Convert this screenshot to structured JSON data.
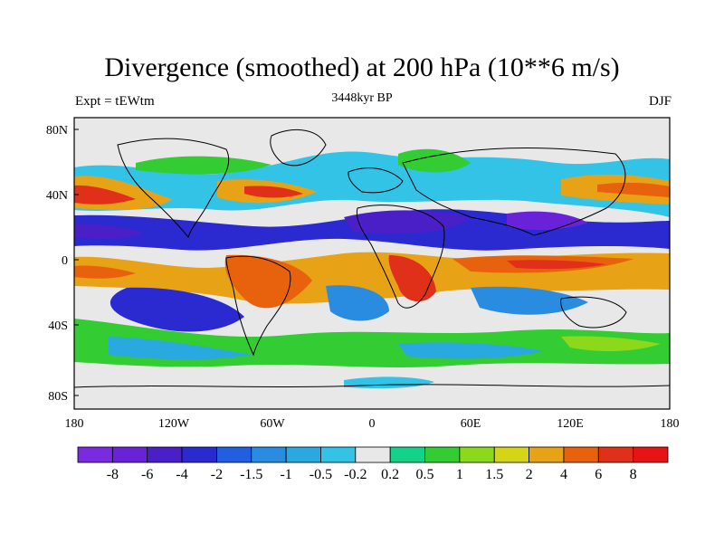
{
  "title": "Divergence (smoothed) at 200 hPa (10**6 m/s)",
  "left_label": "Expt = tEWtm",
  "center_label": "3448kyr BP",
  "right_label": "DJF",
  "lat_ticks": [
    "80N",
    "40N",
    "0",
    "40S",
    "80S"
  ],
  "lon_ticks": [
    "180",
    "120W",
    "60W",
    "0",
    "60E",
    "120E",
    "180"
  ],
  "colorbar": {
    "labels": [
      "-8",
      "-6",
      "-4",
      "-2",
      "-1.5",
      "-1",
      "-0.5",
      "-0.2",
      "0.2",
      "0.5",
      "1",
      "1.5",
      "2",
      "4",
      "6",
      "8"
    ],
    "colors": [
      "#7a2be0",
      "#6a22d8",
      "#4b1fc8",
      "#2a2ad0",
      "#1f5fe0",
      "#2a8ce0",
      "#2aa8e0",
      "#33c3e6",
      "#e8e8e8",
      "#13d38a",
      "#33cc33",
      "#8cd81a",
      "#d6d416",
      "#e8a216",
      "#e8620e",
      "#e0301a",
      "#e81414"
    ]
  },
  "colors": {
    "ocean_neutral": "#e8e8e8",
    "coast": "#000000"
  }
}
